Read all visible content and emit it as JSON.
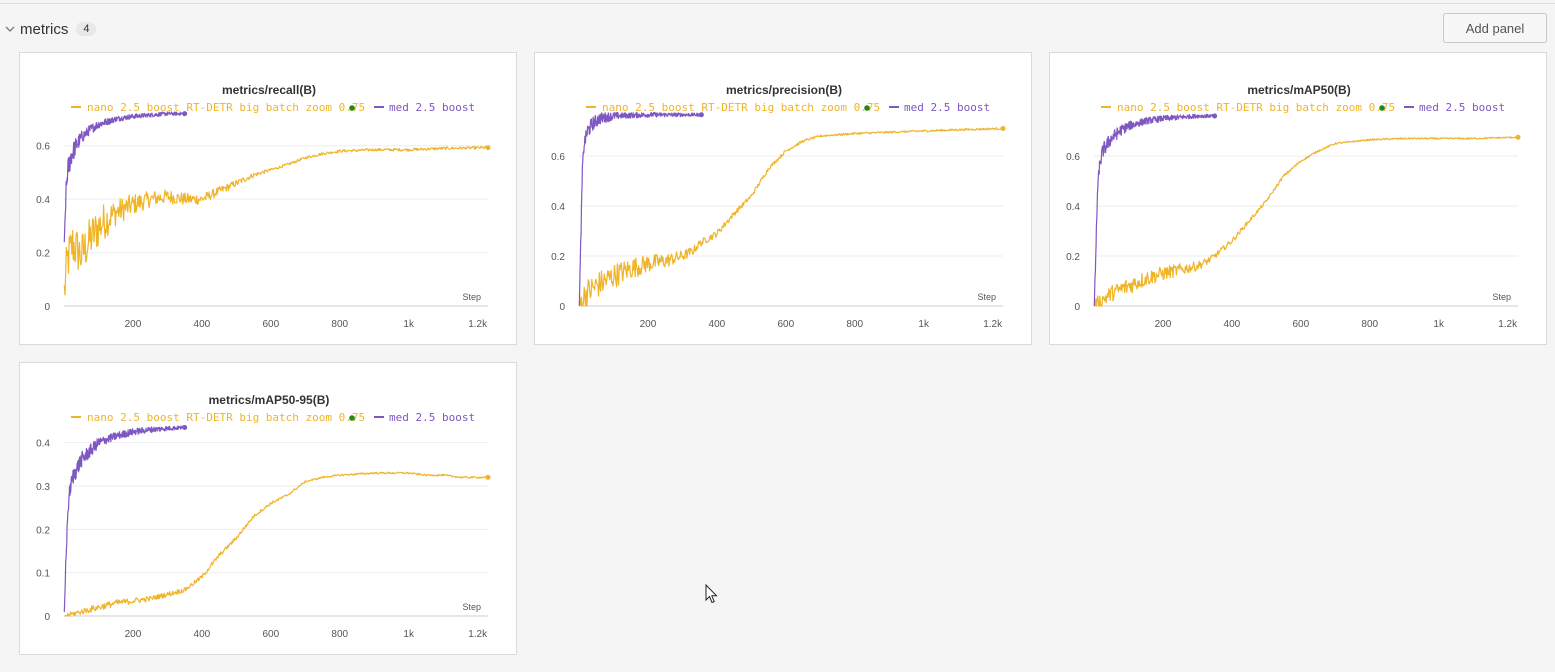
{
  "section": {
    "title": "metrics",
    "count": "4",
    "add_panel_label": "Add panel"
  },
  "colors": {
    "nano": "#f0b429",
    "med": "#7e57c2",
    "dot": "#1e8a1e",
    "axis": "#cccccc",
    "grid": "#eeeeee",
    "text": "#555555"
  },
  "chart_data": [
    {
      "type": "line",
      "title": "metrics/recall(B)",
      "xlabel": "Step",
      "x_ticks": [
        200,
        400,
        600,
        800,
        1000,
        1200
      ],
      "x_tick_labels": [
        "200",
        "400",
        "600",
        "800",
        "1k",
        "1.2k"
      ],
      "xlim": [
        0,
        1230
      ],
      "y_ticks": [
        0,
        0.2,
        0.4,
        0.6
      ],
      "y_tick_labels": [
        "0",
        "0.2",
        "0.4",
        "0.6"
      ],
      "ylim": [
        0,
        0.73
      ],
      "legend": {
        "nano_label": "nano 2.5 boost RT-DETR big batch zoom 0.75",
        "med_label": "med 2.5 boost"
      },
      "series": [
        {
          "name": "nano 2.5 boost RT-DETR big batch zoom 0.75",
          "color": "#f0b429",
          "points": [
            [
              1,
              0.05
            ],
            [
              10,
              0.17
            ],
            [
              25,
              0.23
            ],
            [
              50,
              0.19
            ],
            [
              80,
              0.26
            ],
            [
              110,
              0.31
            ],
            [
              150,
              0.35
            ],
            [
              200,
              0.38
            ],
            [
              250,
              0.4
            ],
            [
              300,
              0.41
            ],
            [
              350,
              0.4
            ],
            [
              400,
              0.4
            ],
            [
              450,
              0.43
            ],
            [
              500,
              0.46
            ],
            [
              550,
              0.49
            ],
            [
              600,
              0.51
            ],
            [
              650,
              0.53
            ],
            [
              700,
              0.555
            ],
            [
              750,
              0.57
            ],
            [
              800,
              0.58
            ],
            [
              900,
              0.585
            ],
            [
              1000,
              0.585
            ],
            [
              1100,
              0.59
            ],
            [
              1230,
              0.593
            ]
          ],
          "noise": [
            [
              10,
              0.09
            ],
            [
              100,
              0.08
            ],
            [
              150,
              0.05
            ],
            [
              250,
              0.03
            ],
            [
              400,
              0.02
            ],
            [
              600,
              0.005
            ]
          ]
        },
        {
          "name": "med 2.5 boost",
          "color": "#7e57c2",
          "points": [
            [
              1,
              0.2
            ],
            [
              5,
              0.4
            ],
            [
              10,
              0.5
            ],
            [
              20,
              0.56
            ],
            [
              35,
              0.6
            ],
            [
              50,
              0.63
            ],
            [
              75,
              0.66
            ],
            [
              100,
              0.68
            ],
            [
              150,
              0.7
            ],
            [
              200,
              0.71
            ],
            [
              250,
              0.715
            ],
            [
              300,
              0.72
            ],
            [
              350,
              0.72
            ]
          ],
          "noise": [
            [
              1,
              0.05
            ],
            [
              60,
              0.02
            ],
            [
              150,
              0.01
            ],
            [
              350,
              0.006
            ]
          ]
        }
      ]
    },
    {
      "type": "line",
      "title": "metrics/precision(B)",
      "xlabel": "Step",
      "x_ticks": [
        200,
        400,
        600,
        800,
        1000,
        1200
      ],
      "x_tick_labels": [
        "200",
        "400",
        "600",
        "800",
        "1k",
        "1.2k"
      ],
      "xlim": [
        0,
        1230
      ],
      "y_ticks": [
        0,
        0.2,
        0.4,
        0.6
      ],
      "y_tick_labels": [
        "0",
        "0.2",
        "0.4",
        "0.6"
      ],
      "ylim": [
        0,
        0.78
      ],
      "legend": {
        "nano_label": "nano 2.5 boost RT-DETR big batch zoom 0.75",
        "med_label": "med 2.5 boost"
      },
      "series": [
        {
          "name": "nano 2.5 boost RT-DETR big batch zoom 0.75",
          "color": "#f0b429",
          "points": [
            [
              1,
              0.0
            ],
            [
              20,
              0.05
            ],
            [
              50,
              0.08
            ],
            [
              100,
              0.12
            ],
            [
              150,
              0.15
            ],
            [
              200,
              0.17
            ],
            [
              250,
              0.18
            ],
            [
              300,
              0.2
            ],
            [
              330,
              0.22
            ],
            [
              350,
              0.25
            ],
            [
              400,
              0.29
            ],
            [
              450,
              0.37
            ],
            [
              500,
              0.44
            ],
            [
              550,
              0.55
            ],
            [
              600,
              0.62
            ],
            [
              650,
              0.66
            ],
            [
              700,
              0.68
            ],
            [
              800,
              0.69
            ],
            [
              900,
              0.695
            ],
            [
              1000,
              0.7
            ],
            [
              1100,
              0.705
            ],
            [
              1230,
              0.71
            ]
          ],
          "noise": [
            [
              1,
              0.06
            ],
            [
              100,
              0.05
            ],
            [
              250,
              0.03
            ],
            [
              350,
              0.015
            ],
            [
              500,
              0.008
            ],
            [
              700,
              0.004
            ]
          ]
        },
        {
          "name": "med 2.5 boost",
          "color": "#7e57c2",
          "points": [
            [
              1,
              0.0
            ],
            [
              5,
              0.25
            ],
            [
              10,
              0.55
            ],
            [
              15,
              0.65
            ],
            [
              25,
              0.7
            ],
            [
              40,
              0.73
            ],
            [
              60,
              0.75
            ],
            [
              100,
              0.76
            ],
            [
              200,
              0.765
            ],
            [
              300,
              0.765
            ],
            [
              355,
              0.765
            ]
          ],
          "noise": [
            [
              1,
              0.02
            ],
            [
              30,
              0.03
            ],
            [
              120,
              0.012
            ],
            [
              355,
              0.006
            ]
          ]
        }
      ]
    },
    {
      "type": "line",
      "title": "metrics/mAP50(B)",
      "xlabel": "Step",
      "x_ticks": [
        200,
        400,
        600,
        800,
        1000,
        1200
      ],
      "x_tick_labels": [
        "200",
        "400",
        "600",
        "800",
        "1k",
        "1.2k"
      ],
      "xlim": [
        0,
        1230
      ],
      "y_ticks": [
        0,
        0.2,
        0.4,
        0.6
      ],
      "y_tick_labels": [
        "0",
        "0.2",
        "0.4",
        "0.6"
      ],
      "ylim": [
        0,
        0.78
      ],
      "legend": {
        "nano_label": "nano 2.5 boost RT-DETR big batch zoom 0.75",
        "med_label": "med 2.5 boost"
      },
      "series": [
        {
          "name": "nano 2.5 boost RT-DETR big batch zoom 0.75",
          "color": "#f0b429",
          "points": [
            [
              1,
              0.0
            ],
            [
              20,
              0.02
            ],
            [
              50,
              0.05
            ],
            [
              100,
              0.08
            ],
            [
              150,
              0.11
            ],
            [
              200,
              0.13
            ],
            [
              250,
              0.145
            ],
            [
              300,
              0.16
            ],
            [
              330,
              0.18
            ],
            [
              350,
              0.2
            ],
            [
              400,
              0.26
            ],
            [
              450,
              0.34
            ],
            [
              500,
              0.42
            ],
            [
              550,
              0.52
            ],
            [
              600,
              0.58
            ],
            [
              650,
              0.62
            ],
            [
              700,
              0.65
            ],
            [
              800,
              0.665
            ],
            [
              900,
              0.67
            ],
            [
              1000,
              0.67
            ],
            [
              1100,
              0.67
            ],
            [
              1230,
              0.675
            ]
          ],
          "noise": [
            [
              1,
              0.03
            ],
            [
              100,
              0.035
            ],
            [
              250,
              0.025
            ],
            [
              350,
              0.012
            ],
            [
              500,
              0.006
            ],
            [
              700,
              0.003
            ]
          ]
        },
        {
          "name": "med 2.5 boost",
          "color": "#7e57c2",
          "points": [
            [
              1,
              0.0
            ],
            [
              5,
              0.2
            ],
            [
              10,
              0.45
            ],
            [
              15,
              0.55
            ],
            [
              25,
              0.62
            ],
            [
              50,
              0.67
            ],
            [
              75,
              0.7
            ],
            [
              100,
              0.72
            ],
            [
              150,
              0.74
            ],
            [
              200,
              0.75
            ],
            [
              250,
              0.755
            ],
            [
              300,
              0.76
            ],
            [
              350,
              0.76
            ]
          ],
          "noise": [
            [
              1,
              0.02
            ],
            [
              30,
              0.03
            ],
            [
              120,
              0.015
            ],
            [
              350,
              0.006
            ]
          ]
        }
      ]
    },
    {
      "type": "line",
      "title": "metrics/mAP50-95(B)",
      "xlabel": "Step",
      "x_ticks": [
        200,
        400,
        600,
        800,
        1000,
        1200
      ],
      "x_tick_labels": [
        "200",
        "400",
        "600",
        "800",
        "1k",
        "1.2k"
      ],
      "xlim": [
        0,
        1230
      ],
      "y_ticks": [
        0,
        0.1,
        0.2,
        0.3,
        0.4
      ],
      "y_tick_labels": [
        "0",
        "0.1",
        "0.2",
        "0.3",
        "0.4"
      ],
      "ylim": [
        0,
        0.45
      ],
      "legend": {
        "nano_label": "nano 2.5 boost RT-DETR big batch zoom 0.75",
        "med_label": "med 2.5 boost"
      },
      "series": [
        {
          "name": "nano 2.5 boost RT-DETR big batch zoom 0.75",
          "color": "#f0b429",
          "points": [
            [
              1,
              0.0
            ],
            [
              50,
              0.01
            ],
            [
              100,
              0.02
            ],
            [
              150,
              0.03
            ],
            [
              200,
              0.035
            ],
            [
              250,
              0.04
            ],
            [
              300,
              0.05
            ],
            [
              350,
              0.06
            ],
            [
              400,
              0.09
            ],
            [
              450,
              0.14
            ],
            [
              500,
              0.18
            ],
            [
              550,
              0.23
            ],
            [
              600,
              0.26
            ],
            [
              650,
              0.28
            ],
            [
              700,
              0.31
            ],
            [
              750,
              0.32
            ],
            [
              800,
              0.325
            ],
            [
              900,
              0.33
            ],
            [
              1000,
              0.33
            ],
            [
              1050,
              0.325
            ],
            [
              1100,
              0.325
            ],
            [
              1150,
              0.32
            ],
            [
              1230,
              0.32
            ]
          ],
          "noise": [
            [
              1,
              0.005
            ],
            [
              100,
              0.008
            ],
            [
              250,
              0.006
            ],
            [
              400,
              0.005
            ],
            [
              700,
              0.002
            ]
          ]
        },
        {
          "name": "med 2.5 boost",
          "color": "#7e57c2",
          "points": [
            [
              1,
              0.0
            ],
            [
              5,
              0.12
            ],
            [
              10,
              0.22
            ],
            [
              15,
              0.28
            ],
            [
              25,
              0.32
            ],
            [
              50,
              0.36
            ],
            [
              75,
              0.38
            ],
            [
              100,
              0.4
            ],
            [
              150,
              0.415
            ],
            [
              200,
              0.425
            ],
            [
              250,
              0.43
            ],
            [
              300,
              0.433
            ],
            [
              350,
              0.435
            ]
          ],
          "noise": [
            [
              1,
              0.01
            ],
            [
              30,
              0.02
            ],
            [
              120,
              0.01
            ],
            [
              350,
              0.004
            ]
          ]
        }
      ]
    }
  ]
}
